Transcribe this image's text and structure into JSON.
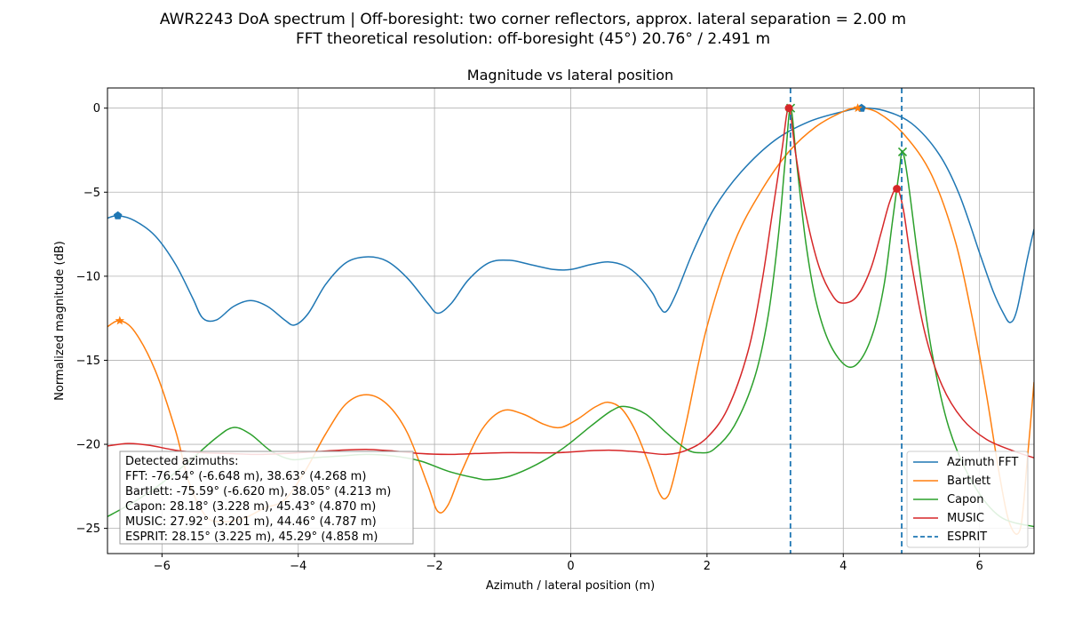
{
  "figure": {
    "suptitle_line1": "AWR2243 DoA spectrum | Off-boresight: two corner reflectors, approx. lateral separation = 2.00 m",
    "suptitle_line2": "FFT theoretical resolution: off-boresight (45°) 20.76° / 2.491 m"
  },
  "annotation": {
    "lines": [
      "Detected azimuths:",
      "FFT: -76.54° (-6.648 m), 38.63° (4.268 m)",
      "Bartlett: -75.59° (-6.620 m), 38.05° (4.213 m)",
      "Capon: 28.18° (3.228 m), 45.43° (4.870 m)",
      "MUSIC: 27.92° (3.201 m), 44.46° (4.787 m)",
      "ESPRIT: 28.15° (3.225 m), 45.29° (4.858 m)"
    ]
  },
  "chart_data": {
    "type": "line",
    "title": "Magnitude vs lateral position",
    "xlabel": "Azimuth / lateral position (m)",
    "ylabel": "Normalized magnitude (dB)",
    "xlim": [
      -6.8,
      6.8
    ],
    "ylim": [
      -26.5,
      1.2
    ],
    "xticks": [
      -6,
      -4,
      -2,
      0,
      2,
      4,
      6
    ],
    "yticks": [
      0,
      -5,
      -10,
      -15,
      -20,
      -25
    ],
    "xtick_labels": [
      "−6",
      "−4",
      "−2",
      "0",
      "2",
      "4",
      "6"
    ],
    "ytick_labels": [
      "0",
      "−5",
      "−10",
      "−15",
      "−20",
      "−25"
    ],
    "grid": true,
    "legend_position": "lower-right",
    "series": [
      {
        "name": "Azimuth FFT",
        "color": "#1f77b4",
        "marker": "pentagon",
        "peaks": [
          [
            -6.648,
            -6.4
          ],
          [
            4.268,
            0.0
          ]
        ],
        "points": [
          [
            -6.8,
            -6.55
          ],
          [
            -6.65,
            -6.4
          ],
          [
            -6.4,
            -6.7
          ],
          [
            -6.1,
            -7.6
          ],
          [
            -5.8,
            -9.3
          ],
          [
            -5.55,
            -11.3
          ],
          [
            -5.4,
            -12.5
          ],
          [
            -5.2,
            -12.6
          ],
          [
            -4.95,
            -11.8
          ],
          [
            -4.7,
            -11.45
          ],
          [
            -4.45,
            -11.8
          ],
          [
            -4.2,
            -12.6
          ],
          [
            -4.05,
            -12.9
          ],
          [
            -3.85,
            -12.2
          ],
          [
            -3.6,
            -10.5
          ],
          [
            -3.3,
            -9.2
          ],
          [
            -3.0,
            -8.85
          ],
          [
            -2.7,
            -9.1
          ],
          [
            -2.4,
            -10.1
          ],
          [
            -2.1,
            -11.6
          ],
          [
            -1.95,
            -12.2
          ],
          [
            -1.75,
            -11.6
          ],
          [
            -1.5,
            -10.2
          ],
          [
            -1.2,
            -9.2
          ],
          [
            -0.9,
            -9.05
          ],
          [
            -0.6,
            -9.3
          ],
          [
            -0.25,
            -9.6
          ],
          [
            0.0,
            -9.6
          ],
          [
            0.3,
            -9.3
          ],
          [
            0.55,
            -9.15
          ],
          [
            0.8,
            -9.4
          ],
          [
            1.0,
            -10.0
          ],
          [
            1.2,
            -11.0
          ],
          [
            1.3,
            -11.8
          ],
          [
            1.4,
            -12.1
          ],
          [
            1.55,
            -11.0
          ],
          [
            1.8,
            -8.5
          ],
          [
            2.1,
            -6.0
          ],
          [
            2.5,
            -3.8
          ],
          [
            3.0,
            -1.9
          ],
          [
            3.5,
            -0.8
          ],
          [
            4.0,
            -0.2
          ],
          [
            4.27,
            0.0
          ],
          [
            4.6,
            -0.15
          ],
          [
            5.0,
            -0.9
          ],
          [
            5.4,
            -2.7
          ],
          [
            5.7,
            -5.1
          ],
          [
            6.0,
            -8.6
          ],
          [
            6.2,
            -10.9
          ],
          [
            6.35,
            -12.2
          ],
          [
            6.45,
            -12.75
          ],
          [
            6.55,
            -12.0
          ],
          [
            6.7,
            -9.0
          ],
          [
            6.8,
            -7.2
          ]
        ]
      },
      {
        "name": "Bartlett",
        "color": "#ff7f0e",
        "marker": "star",
        "peaks": [
          [
            -6.62,
            -12.65
          ],
          [
            4.213,
            0.0
          ]
        ],
        "points": [
          [
            -6.8,
            -13.0
          ],
          [
            -6.62,
            -12.65
          ],
          [
            -6.4,
            -13.3
          ],
          [
            -6.1,
            -15.6
          ],
          [
            -5.8,
            -19.2
          ],
          [
            -5.6,
            -22.3
          ],
          [
            -5.35,
            -24.3
          ],
          [
            -5.1,
            -24.6
          ],
          [
            -4.8,
            -24.4
          ],
          [
            -4.5,
            -23.8
          ],
          [
            -4.2,
            -23.3
          ],
          [
            -3.9,
            -21.6
          ],
          [
            -3.6,
            -19.4
          ],
          [
            -3.3,
            -17.6
          ],
          [
            -3.0,
            -17.05
          ],
          [
            -2.7,
            -17.6
          ],
          [
            -2.4,
            -19.3
          ],
          [
            -2.1,
            -22.4
          ],
          [
            -1.95,
            -24.0
          ],
          [
            -1.8,
            -23.6
          ],
          [
            -1.6,
            -21.6
          ],
          [
            -1.3,
            -19.1
          ],
          [
            -1.0,
            -18.0
          ],
          [
            -0.7,
            -18.2
          ],
          [
            -0.4,
            -18.8
          ],
          [
            -0.15,
            -19.0
          ],
          [
            0.1,
            -18.5
          ],
          [
            0.35,
            -17.8
          ],
          [
            0.55,
            -17.5
          ],
          [
            0.75,
            -17.9
          ],
          [
            0.95,
            -19.2
          ],
          [
            1.15,
            -21.2
          ],
          [
            1.3,
            -22.9
          ],
          [
            1.4,
            -23.2
          ],
          [
            1.5,
            -22.2
          ],
          [
            1.7,
            -18.6
          ],
          [
            2.0,
            -13.0
          ],
          [
            2.4,
            -8.0
          ],
          [
            2.8,
            -4.9
          ],
          [
            3.2,
            -2.6
          ],
          [
            3.6,
            -1.1
          ],
          [
            4.0,
            -0.2
          ],
          [
            4.21,
            0.0
          ],
          [
            4.5,
            -0.25
          ],
          [
            4.9,
            -1.6
          ],
          [
            5.3,
            -4.0
          ],
          [
            5.65,
            -8.0
          ],
          [
            5.9,
            -12.6
          ],
          [
            6.1,
            -17.0
          ],
          [
            6.3,
            -22.0
          ],
          [
            6.45,
            -24.8
          ],
          [
            6.6,
            -25.0
          ],
          [
            6.7,
            -21.0
          ],
          [
            6.8,
            -16.3
          ]
        ]
      },
      {
        "name": "Capon",
        "color": "#2ca02c",
        "marker": "x",
        "peaks": [
          [
            3.228,
            0.0
          ],
          [
            4.87,
            -2.6
          ]
        ],
        "points": [
          [
            -6.8,
            -24.3
          ],
          [
            -6.4,
            -23.4
          ],
          [
            -6.0,
            -22.3
          ],
          [
            -5.6,
            -21.0
          ],
          [
            -5.2,
            -19.6
          ],
          [
            -4.95,
            -19.0
          ],
          [
            -4.7,
            -19.4
          ],
          [
            -4.4,
            -20.4
          ],
          [
            -4.1,
            -20.9
          ],
          [
            -3.8,
            -20.8
          ],
          [
            -3.4,
            -20.7
          ],
          [
            -3.0,
            -20.6
          ],
          [
            -2.6,
            -20.7
          ],
          [
            -2.2,
            -21.0
          ],
          [
            -1.8,
            -21.6
          ],
          [
            -1.4,
            -22.0
          ],
          [
            -1.2,
            -22.1
          ],
          [
            -0.9,
            -21.9
          ],
          [
            -0.5,
            -21.2
          ],
          [
            -0.1,
            -20.2
          ],
          [
            0.3,
            -18.9
          ],
          [
            0.6,
            -18.0
          ],
          [
            0.8,
            -17.75
          ],
          [
            1.1,
            -18.2
          ],
          [
            1.4,
            -19.3
          ],
          [
            1.7,
            -20.3
          ],
          [
            1.9,
            -20.5
          ],
          [
            2.1,
            -20.3
          ],
          [
            2.4,
            -18.9
          ],
          [
            2.7,
            -16.0
          ],
          [
            2.9,
            -12.3
          ],
          [
            3.05,
            -7.5
          ],
          [
            3.15,
            -3.0
          ],
          [
            3.228,
            0.0
          ],
          [
            3.32,
            -3.4
          ],
          [
            3.45,
            -8.0
          ],
          [
            3.6,
            -11.5
          ],
          [
            3.8,
            -14.0
          ],
          [
            4.05,
            -15.35
          ],
          [
            4.25,
            -15.0
          ],
          [
            4.45,
            -13.2
          ],
          [
            4.6,
            -10.5
          ],
          [
            4.72,
            -6.8
          ],
          [
            4.82,
            -3.8
          ],
          [
            4.87,
            -2.6
          ],
          [
            4.95,
            -4.3
          ],
          [
            5.1,
            -9.0
          ],
          [
            5.3,
            -14.5
          ],
          [
            5.55,
            -19.0
          ],
          [
            5.9,
            -22.3
          ],
          [
            6.3,
            -24.3
          ],
          [
            6.8,
            -24.9
          ]
        ]
      },
      {
        "name": "MUSIC",
        "color": "#d62728",
        "marker": "circle",
        "peaks": [
          [
            3.201,
            0.0
          ],
          [
            4.787,
            -4.8
          ]
        ],
        "points": [
          [
            -6.8,
            -20.1
          ],
          [
            -6.5,
            -19.95
          ],
          [
            -6.2,
            -20.05
          ],
          [
            -5.8,
            -20.35
          ],
          [
            -5.4,
            -20.5
          ],
          [
            -5.0,
            -20.55
          ],
          [
            -4.6,
            -20.6
          ],
          [
            -4.2,
            -20.55
          ],
          [
            -3.8,
            -20.45
          ],
          [
            -3.4,
            -20.35
          ],
          [
            -3.0,
            -20.3
          ],
          [
            -2.6,
            -20.4
          ],
          [
            -2.2,
            -20.55
          ],
          [
            -1.8,
            -20.6
          ],
          [
            -1.4,
            -20.55
          ],
          [
            -1.0,
            -20.5
          ],
          [
            -0.6,
            -20.5
          ],
          [
            -0.2,
            -20.5
          ],
          [
            0.2,
            -20.4
          ],
          [
            0.6,
            -20.35
          ],
          [
            1.0,
            -20.45
          ],
          [
            1.4,
            -20.6
          ],
          [
            1.7,
            -20.35
          ],
          [
            2.0,
            -19.6
          ],
          [
            2.3,
            -17.9
          ],
          [
            2.6,
            -14.5
          ],
          [
            2.8,
            -10.5
          ],
          [
            2.95,
            -6.5
          ],
          [
            3.1,
            -2.5
          ],
          [
            3.2,
            0.0
          ],
          [
            3.3,
            -2.7
          ],
          [
            3.45,
            -6.3
          ],
          [
            3.65,
            -9.5
          ],
          [
            3.85,
            -11.2
          ],
          [
            4.0,
            -11.6
          ],
          [
            4.2,
            -11.2
          ],
          [
            4.4,
            -9.6
          ],
          [
            4.55,
            -7.5
          ],
          [
            4.68,
            -5.6
          ],
          [
            4.787,
            -4.8
          ],
          [
            4.88,
            -6.0
          ],
          [
            5.0,
            -9.2
          ],
          [
            5.2,
            -13.4
          ],
          [
            5.45,
            -16.5
          ],
          [
            5.75,
            -18.5
          ],
          [
            6.1,
            -19.7
          ],
          [
            6.5,
            -20.4
          ],
          [
            6.8,
            -20.8
          ]
        ]
      }
    ],
    "vlines": {
      "name": "ESPRIT",
      "color": "#1f77b4",
      "x": [
        3.225,
        4.858
      ]
    }
  }
}
